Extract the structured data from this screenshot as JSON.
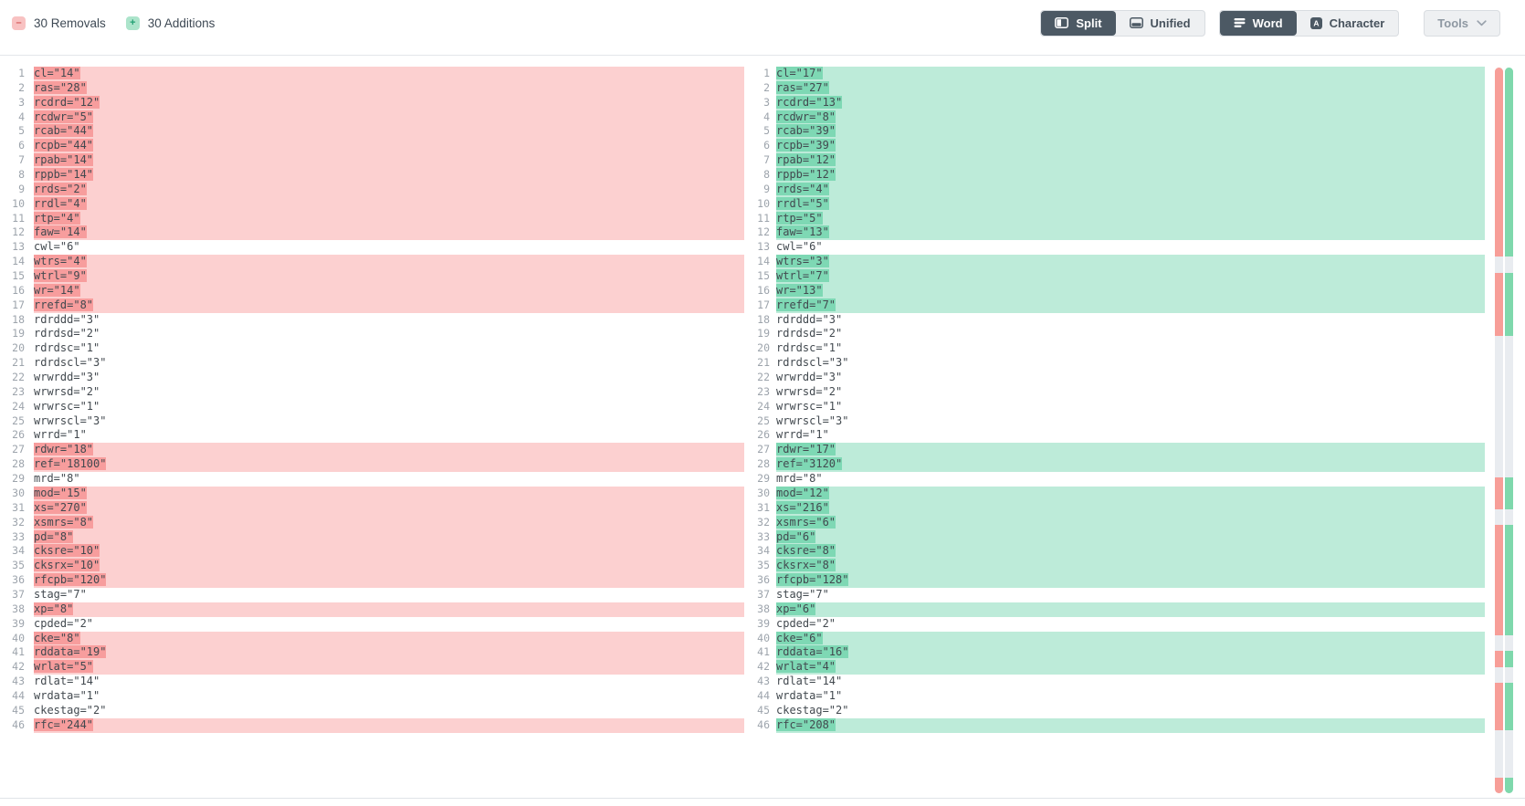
{
  "header": {
    "removals": {
      "label": "30 Removals",
      "icon": "minus",
      "symbol": "–"
    },
    "additions": {
      "label": "30 Additions",
      "icon": "plus",
      "symbol": "+"
    },
    "view_toggle": {
      "split": {
        "label": "Split",
        "active": true
      },
      "unified": {
        "label": "Unified",
        "active": false
      }
    },
    "granularity_toggle": {
      "word": {
        "label": "Word",
        "active": true
      },
      "character": {
        "label": "Character",
        "active": false
      }
    },
    "tools": {
      "label": "Tools",
      "icon": "chevron-down"
    }
  },
  "colors": {
    "removal_row_bg": "#fcd0d0",
    "removal_word_bg": "#f79d9d",
    "addition_row_bg": "#bdebd9",
    "addition_word_bg": "#7ed8b4",
    "minimap_removal": "#f79e98",
    "minimap_addition": "#7fd8ac",
    "minimap_track": "#e9ecf0",
    "active_button_bg": "#4c5964"
  },
  "diff": {
    "lines": [
      {
        "n": 1,
        "left": "cl=\"14\"",
        "right": "cl=\"17\"",
        "changed": true
      },
      {
        "n": 2,
        "left": "ras=\"28\"",
        "right": "ras=\"27\"",
        "changed": true
      },
      {
        "n": 3,
        "left": "rcdrd=\"12\"",
        "right": "rcdrd=\"13\"",
        "changed": true
      },
      {
        "n": 4,
        "left": "rcdwr=\"5\"",
        "right": "rcdwr=\"8\"",
        "changed": true
      },
      {
        "n": 5,
        "left": "rcab=\"44\"",
        "right": "rcab=\"39\"",
        "changed": true
      },
      {
        "n": 6,
        "left": "rcpb=\"44\"",
        "right": "rcpb=\"39\"",
        "changed": true
      },
      {
        "n": 7,
        "left": "rpab=\"14\"",
        "right": "rpab=\"12\"",
        "changed": true
      },
      {
        "n": 8,
        "left": "rppb=\"14\"",
        "right": "rppb=\"12\"",
        "changed": true
      },
      {
        "n": 9,
        "left": "rrds=\"2\"",
        "right": "rrds=\"4\"",
        "changed": true
      },
      {
        "n": 10,
        "left": "rrdl=\"4\"",
        "right": "rrdl=\"5\"",
        "changed": true
      },
      {
        "n": 11,
        "left": "rtp=\"4\"",
        "right": "rtp=\"5\"",
        "changed": true
      },
      {
        "n": 12,
        "left": "faw=\"14\"",
        "right": "faw=\"13\"",
        "changed": true
      },
      {
        "n": 13,
        "left": "cwl=\"6\"",
        "right": "cwl=\"6\"",
        "changed": false
      },
      {
        "n": 14,
        "left": "wtrs=\"4\"",
        "right": "wtrs=\"3\"",
        "changed": true
      },
      {
        "n": 15,
        "left": "wtrl=\"9\"",
        "right": "wtrl=\"7\"",
        "changed": true
      },
      {
        "n": 16,
        "left": "wr=\"14\"",
        "right": "wr=\"13\"",
        "changed": true
      },
      {
        "n": 17,
        "left": "rrefd=\"8\"",
        "right": "rrefd=\"7\"",
        "changed": true
      },
      {
        "n": 18,
        "left": "rdrddd=\"3\"",
        "right": "rdrddd=\"3\"",
        "changed": false
      },
      {
        "n": 19,
        "left": "rdrdsd=\"2\"",
        "right": "rdrdsd=\"2\"",
        "changed": false
      },
      {
        "n": 20,
        "left": "rdrdsc=\"1\"",
        "right": "rdrdsc=\"1\"",
        "changed": false
      },
      {
        "n": 21,
        "left": "rdrdscl=\"3\"",
        "right": "rdrdscl=\"3\"",
        "changed": false
      },
      {
        "n": 22,
        "left": "wrwrdd=\"3\"",
        "right": "wrwrdd=\"3\"",
        "changed": false
      },
      {
        "n": 23,
        "left": "wrwrsd=\"2\"",
        "right": "wrwrsd=\"2\"",
        "changed": false
      },
      {
        "n": 24,
        "left": "wrwrsc=\"1\"",
        "right": "wrwrsc=\"1\"",
        "changed": false
      },
      {
        "n": 25,
        "left": "wrwrscl=\"3\"",
        "right": "wrwrscl=\"3\"",
        "changed": false
      },
      {
        "n": 26,
        "left": "wrrd=\"1\"",
        "right": "wrrd=\"1\"",
        "changed": false
      },
      {
        "n": 27,
        "left": "rdwr=\"18\"",
        "right": "rdwr=\"17\"",
        "changed": true
      },
      {
        "n": 28,
        "left": "ref=\"18100\"",
        "right": "ref=\"3120\"",
        "changed": true
      },
      {
        "n": 29,
        "left": "mrd=\"8\"",
        "right": "mrd=\"8\"",
        "changed": false
      },
      {
        "n": 30,
        "left": "mod=\"15\"",
        "right": "mod=\"12\"",
        "changed": true
      },
      {
        "n": 31,
        "left": "xs=\"270\"",
        "right": "xs=\"216\"",
        "changed": true
      },
      {
        "n": 32,
        "left": "xsmrs=\"8\"",
        "right": "xsmrs=\"6\"",
        "changed": true
      },
      {
        "n": 33,
        "left": "pd=\"8\"",
        "right": "pd=\"6\"",
        "changed": true
      },
      {
        "n": 34,
        "left": "cksre=\"10\"",
        "right": "cksre=\"8\"",
        "changed": true
      },
      {
        "n": 35,
        "left": "cksrx=\"10\"",
        "right": "cksrx=\"8\"",
        "changed": true
      },
      {
        "n": 36,
        "left": "rfcpb=\"120\"",
        "right": "rfcpb=\"128\"",
        "changed": true
      },
      {
        "n": 37,
        "left": "stag=\"7\"",
        "right": "stag=\"7\"",
        "changed": false
      },
      {
        "n": 38,
        "left": "xp=\"8\"",
        "right": "xp=\"6\"",
        "changed": true
      },
      {
        "n": 39,
        "left": "cpded=\"2\"",
        "right": "cpded=\"2\"",
        "changed": false
      },
      {
        "n": 40,
        "left": "cke=\"8\"",
        "right": "cke=\"6\"",
        "changed": true
      },
      {
        "n": 41,
        "left": "rddata=\"19\"",
        "right": "rddata=\"16\"",
        "changed": true
      },
      {
        "n": 42,
        "left": "wrlat=\"5\"",
        "right": "wrlat=\"4\"",
        "changed": true
      },
      {
        "n": 43,
        "left": "rdlat=\"14\"",
        "right": "rdlat=\"14\"",
        "changed": false
      },
      {
        "n": 44,
        "left": "wrdata=\"1\"",
        "right": "wrdata=\"1\"",
        "changed": false
      },
      {
        "n": 45,
        "left": "ckestag=\"2\"",
        "right": "ckestag=\"2\"",
        "changed": false
      },
      {
        "n": 46,
        "left": "rfc=\"244\"",
        "right": "rfc=\"208\"",
        "changed": true
      }
    ]
  }
}
